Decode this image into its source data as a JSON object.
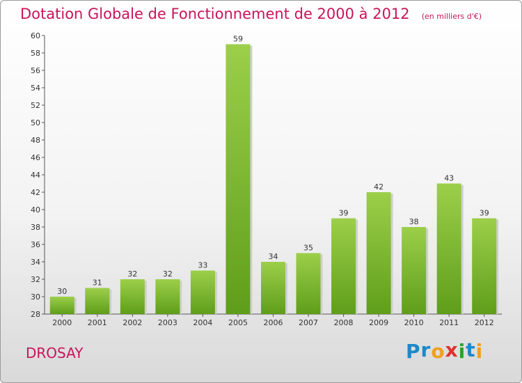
{
  "chart_data": {
    "type": "bar",
    "title": "Dotation Globale de Fonctionnement de 2000 à 2012",
    "subtitle": "(en milliers d'€)",
    "categories": [
      "2000",
      "2001",
      "2002",
      "2003",
      "2004",
      "2005",
      "2006",
      "2007",
      "2008",
      "2009",
      "2010",
      "2011",
      "2012"
    ],
    "values": [
      30,
      31,
      32,
      32,
      33,
      59,
      34,
      35,
      39,
      42,
      38,
      43,
      39
    ],
    "ylim": [
      28,
      60
    ],
    "yticks": [
      28,
      30,
      32,
      34,
      36,
      38,
      40,
      42,
      44,
      46,
      48,
      50,
      52,
      54,
      56,
      58,
      60
    ],
    "grid": false,
    "legend": "none",
    "bar_color_top": "#9ccf4a",
    "bar_color_bottom": "#5f9e1a",
    "axis_color": "#555555"
  },
  "footer": {
    "commune": "DROSAY",
    "logo_letters": [
      {
        "ch": "P",
        "color": "#1e88c8"
      },
      {
        "ch": "r",
        "color": "#1e88c8"
      },
      {
        "ch": "o",
        "color": "#f0a020"
      },
      {
        "ch": "x",
        "color": "#e03030"
      },
      {
        "ch": "i",
        "color": "#30a030"
      },
      {
        "ch": "t",
        "color": "#1e88c8"
      },
      {
        "ch": "i",
        "color": "#f0a020"
      }
    ]
  },
  "colors": {
    "title": "#c8145a"
  }
}
